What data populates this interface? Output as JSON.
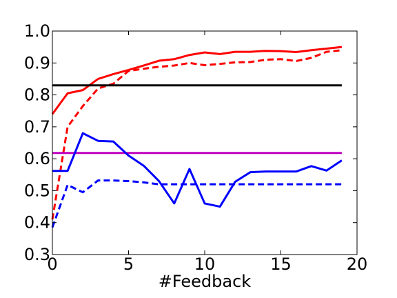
{
  "chart_data": {
    "type": "line",
    "title": "",
    "xlabel": "#Feedback",
    "ylabel": "",
    "xlim": [
      0,
      20
    ],
    "ylim": [
      0.3,
      1.0
    ],
    "grid": false,
    "legend": "none",
    "x_ticks": [
      0,
      5,
      10,
      15,
      20
    ],
    "x_tick_labels": [
      "0",
      "5",
      "10",
      "15",
      "20"
    ],
    "y_ticks": [
      0.3,
      0.4,
      0.5,
      0.6,
      0.7,
      0.8,
      0.9,
      1.0
    ],
    "y_tick_labels": [
      "0.3",
      "0.4",
      "0.5",
      "0.6",
      "0.7",
      "0.8",
      "0.9",
      "1.0"
    ],
    "x": [
      0,
      1,
      2,
      3,
      4,
      5,
      6,
      7,
      8,
      9,
      10,
      11,
      12,
      13,
      14,
      15,
      16,
      17,
      18,
      19
    ],
    "series": [
      {
        "color": "#ff0000",
        "style": "solid",
        "values": [
          0.74,
          0.805,
          0.815,
          0.85,
          0.865,
          0.878,
          0.892,
          0.907,
          0.912,
          0.925,
          0.933,
          0.928,
          0.935,
          0.935,
          0.938,
          0.937,
          0.934,
          0.94,
          0.945,
          0.95
        ]
      },
      {
        "color": "#ff0000",
        "style": "dashed",
        "values": [
          0.41,
          0.7,
          0.765,
          0.82,
          0.835,
          0.875,
          0.882,
          0.888,
          0.892,
          0.9,
          0.893,
          0.897,
          0.902,
          0.903,
          0.91,
          0.912,
          0.906,
          0.916,
          0.935,
          0.94
        ]
      },
      {
        "color": "#000000",
        "style": "solid",
        "values": [
          0.83,
          0.83,
          0.83,
          0.83,
          0.83,
          0.83,
          0.83,
          0.83,
          0.83,
          0.83,
          0.83,
          0.83,
          0.83,
          0.83,
          0.83,
          0.83,
          0.83,
          0.83,
          0.83,
          0.83
        ]
      },
      {
        "color": "#bf00bf",
        "style": "solid",
        "values": [
          0.618,
          0.618,
          0.618,
          0.618,
          0.618,
          0.618,
          0.618,
          0.618,
          0.618,
          0.618,
          0.618,
          0.618,
          0.618,
          0.618,
          0.618,
          0.618,
          0.618,
          0.618,
          0.618,
          0.618
        ]
      },
      {
        "color": "#0000ff",
        "style": "solid",
        "values": [
          0.562,
          0.562,
          0.68,
          0.656,
          0.654,
          0.61,
          0.578,
          0.53,
          0.46,
          0.568,
          0.46,
          0.45,
          0.528,
          0.558,
          0.56,
          0.56,
          0.56,
          0.577,
          0.563,
          0.595
        ]
      },
      {
        "color": "#0000ff",
        "style": "dashed",
        "values": [
          0.385,
          0.518,
          0.495,
          0.532,
          0.532,
          0.53,
          0.526,
          0.52,
          0.52,
          0.52,
          0.52,
          0.52,
          0.52,
          0.52,
          0.52,
          0.52,
          0.52,
          0.52,
          0.52,
          0.52
        ]
      }
    ]
  }
}
